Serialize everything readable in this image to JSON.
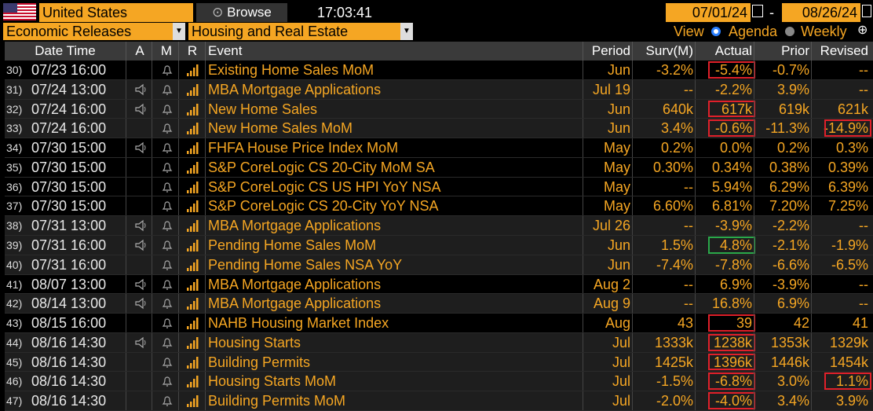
{
  "toolbar": {
    "country": "United States",
    "browse": "Browse",
    "time": "17:03:41",
    "start_date": "07/01/24",
    "date_sep": "-",
    "end_date": "08/26/24",
    "source": "Economic Releases",
    "category": "Housing and Real Estate",
    "view": "View",
    "agenda": "Agenda",
    "weekly": "Weekly"
  },
  "table": {
    "columns": [
      "Date Time",
      "A",
      "M",
      "R",
      "Event",
      "Period",
      "Surv(M)",
      "Actual",
      "Prior",
      "Revised"
    ],
    "rows": [
      {
        "num": "30)",
        "datetime": "07/23 16:00",
        "audio": false,
        "event": "Existing Home Sales MoM",
        "period": "Jun",
        "surv": "-3.2%",
        "actual": "-5.4%",
        "prior": "-0.7%",
        "revised": "--",
        "actual_box": "#e0202a"
      },
      {
        "num": "31)",
        "datetime": "07/24 13:00",
        "audio": true,
        "event": "MBA Mortgage Applications",
        "period": "Jul 19",
        "surv": "--",
        "actual": "-2.2%",
        "prior": "3.9%",
        "revised": "--"
      },
      {
        "num": "32)",
        "datetime": "07/24 16:00",
        "audio": true,
        "event": "New Home Sales",
        "period": "Jun",
        "surv": "640k",
        "actual": "617k",
        "prior": "619k",
        "revised": "621k",
        "actual_box": "#e0202a"
      },
      {
        "num": "33)",
        "datetime": "07/24 16:00",
        "audio": false,
        "event": "New Home Sales MoM",
        "period": "Jun",
        "surv": "3.4%",
        "actual": "-0.6%",
        "prior": "-11.3%",
        "revised": "-14.9%",
        "actual_box": "#e0202a",
        "revised_box": "#e0202a"
      },
      {
        "num": "34)",
        "datetime": "07/30 15:00",
        "audio": true,
        "event": "FHFA House Price Index MoM",
        "period": "May",
        "surv": "0.2%",
        "actual": "0.0%",
        "prior": "0.2%",
        "revised": "0.3%"
      },
      {
        "num": "35)",
        "datetime": "07/30 15:00",
        "audio": false,
        "event": "S&P CoreLogic CS 20-City MoM SA",
        "period": "May",
        "surv": "0.30%",
        "actual": "0.34%",
        "prior": "0.38%",
        "revised": "0.39%"
      },
      {
        "num": "36)",
        "datetime": "07/30 15:00",
        "audio": false,
        "event": "S&P CoreLogic CS US HPI YoY NSA",
        "period": "May",
        "surv": "--",
        "actual": "5.94%",
        "prior": "6.29%",
        "revised": "6.39%"
      },
      {
        "num": "37)",
        "datetime": "07/30 15:00",
        "audio": false,
        "event": "S&P CoreLogic CS 20-City YoY NSA",
        "period": "May",
        "surv": "6.60%",
        "actual": "6.81%",
        "prior": "7.20%",
        "revised": "7.25%"
      },
      {
        "num": "38)",
        "datetime": "07/31 13:00",
        "audio": true,
        "event": "MBA Mortgage Applications",
        "period": "Jul 26",
        "surv": "--",
        "actual": "-3.9%",
        "prior": "-2.2%",
        "revised": "--"
      },
      {
        "num": "39)",
        "datetime": "07/31 16:00",
        "audio": true,
        "event": "Pending Home Sales MoM",
        "period": "Jun",
        "surv": "1.5%",
        "actual": "4.8%",
        "prior": "-2.1%",
        "revised": "-1.9%",
        "actual_box": "#2aa84a"
      },
      {
        "num": "40)",
        "datetime": "07/31 16:00",
        "audio": false,
        "event": "Pending Home Sales NSA YoY",
        "period": "Jun",
        "surv": "-7.4%",
        "actual": "-7.8%",
        "prior": "-6.6%",
        "revised": "-6.5%"
      },
      {
        "num": "41)",
        "datetime": "08/07 13:00",
        "audio": true,
        "event": "MBA Mortgage Applications",
        "period": "Aug 2",
        "surv": "--",
        "actual": "6.9%",
        "prior": "-3.9%",
        "revised": "--"
      },
      {
        "num": "42)",
        "datetime": "08/14 13:00",
        "audio": true,
        "event": "MBA Mortgage Applications",
        "period": "Aug 9",
        "surv": "--",
        "actual": "16.8%",
        "prior": "6.9%",
        "revised": "--"
      },
      {
        "num": "43)",
        "datetime": "08/15 16:00",
        "audio": false,
        "event": "NAHB Housing Market Index",
        "period": "Aug",
        "surv": "43",
        "actual": "39",
        "prior": "42",
        "revised": "41",
        "actual_box": "#e0202a"
      },
      {
        "num": "44)",
        "datetime": "08/16 14:30",
        "audio": true,
        "event": "Housing Starts",
        "period": "Jul",
        "surv": "1333k",
        "actual": "1238k",
        "prior": "1353k",
        "revised": "1329k",
        "actual_box": "#e0202a"
      },
      {
        "num": "45)",
        "datetime": "08/16 14:30",
        "audio": false,
        "event": "Building Permits",
        "period": "Jul",
        "surv": "1425k",
        "actual": "1396k",
        "prior": "1446k",
        "revised": "1454k",
        "actual_box": "#e0202a"
      },
      {
        "num": "46)",
        "datetime": "08/16 14:30",
        "audio": false,
        "event": "Housing Starts MoM",
        "period": "Jul",
        "surv": "-1.5%",
        "actual": "-6.8%",
        "prior": "3.0%",
        "revised": "1.1%",
        "actual_box": "#e0202a",
        "revised_box": "#e0202a"
      },
      {
        "num": "47)",
        "datetime": "08/16 14:30",
        "audio": false,
        "event": "Building Permits MoM",
        "period": "Jul",
        "surv": "-2.0%",
        "actual": "-4.0%",
        "prior": "3.4%",
        "revised": "3.9%",
        "actual_box": "#e0202a"
      }
    ]
  }
}
